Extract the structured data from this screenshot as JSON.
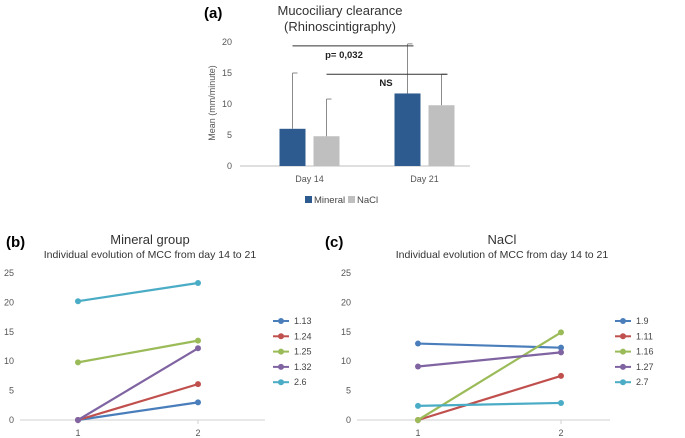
{
  "chart_data": [
    {
      "panel_label": "(a)",
      "type": "bar",
      "title": "Mucociliary clearance",
      "subtitle": "(Rhinoscintigraphy)",
      "xlabel": "",
      "ylabel": "Mean (mm/minute)",
      "ylim": [
        0,
        20
      ],
      "yticks": [
        "0",
        "5",
        "10",
        "15",
        "20"
      ],
      "categories": [
        "Day 14",
        "Day 21"
      ],
      "series": [
        {
          "name": "Mineral",
          "color": "#2E5B8F",
          "values": [
            6.0,
            11.7
          ],
          "err_upper": [
            15.0,
            19.7
          ]
        },
        {
          "name": "NaCl",
          "color": "#BFBFBF",
          "values": [
            4.8,
            9.8
          ],
          "err_upper": [
            10.8,
            14.8
          ]
        }
      ],
      "annotations": [
        {
          "text": "p= 0,032",
          "from": "Mineral Day 14",
          "to": "Mineral Day 21",
          "level": 19.7
        },
        {
          "text": "NS",
          "from": "NaCl Day 14",
          "to": "NaCl Day 21",
          "level": 14.8
        }
      ],
      "legend": "bottom"
    },
    {
      "panel_label": "(b)",
      "type": "line",
      "title": "Mineral group",
      "subtitle": "Individual evolution of MCC from  day 14 to 21",
      "ylim": [
        0,
        25
      ],
      "yticks": [
        "0",
        "5",
        "10",
        "15",
        "20",
        "25"
      ],
      "x": [
        "1",
        "2"
      ],
      "series": [
        {
          "name": "1.13",
          "color": "#4A7EBB",
          "values": [
            0.0,
            3.0
          ]
        },
        {
          "name": "1.24",
          "color": "#C0504D",
          "values": [
            0.0,
            6.1
          ]
        },
        {
          "name": "1.25",
          "color": "#9BBB59",
          "values": [
            9.8,
            13.5
          ]
        },
        {
          "name": "1.32",
          "color": "#8064A2",
          "values": [
            0.0,
            12.2
          ]
        },
        {
          "name": "2.6",
          "color": "#4BACC6",
          "values": [
            20.2,
            23.3
          ]
        }
      ],
      "legend": "right"
    },
    {
      "panel_label": "(c)",
      "type": "line",
      "title": "NaCl",
      "subtitle": "Individual evolution of MCC from  day 14 to 21",
      "ylim": [
        0,
        25
      ],
      "yticks": [
        "0",
        "5",
        "10",
        "15",
        "20",
        "25"
      ],
      "x": [
        "1",
        "2"
      ],
      "series": [
        {
          "name": "1.9",
          "color": "#4A7EBB",
          "values": [
            13.0,
            12.3
          ]
        },
        {
          "name": "1.11",
          "color": "#C0504D",
          "values": [
            0.0,
            7.5
          ]
        },
        {
          "name": "1.16",
          "color": "#9BBB59",
          "values": [
            0.0,
            14.9
          ]
        },
        {
          "name": "1.27",
          "color": "#8064A2",
          "values": [
            9.1,
            11.5
          ]
        },
        {
          "name": "2.7",
          "color": "#4BACC6",
          "values": [
            2.4,
            2.9
          ]
        }
      ],
      "legend": "right"
    }
  ]
}
